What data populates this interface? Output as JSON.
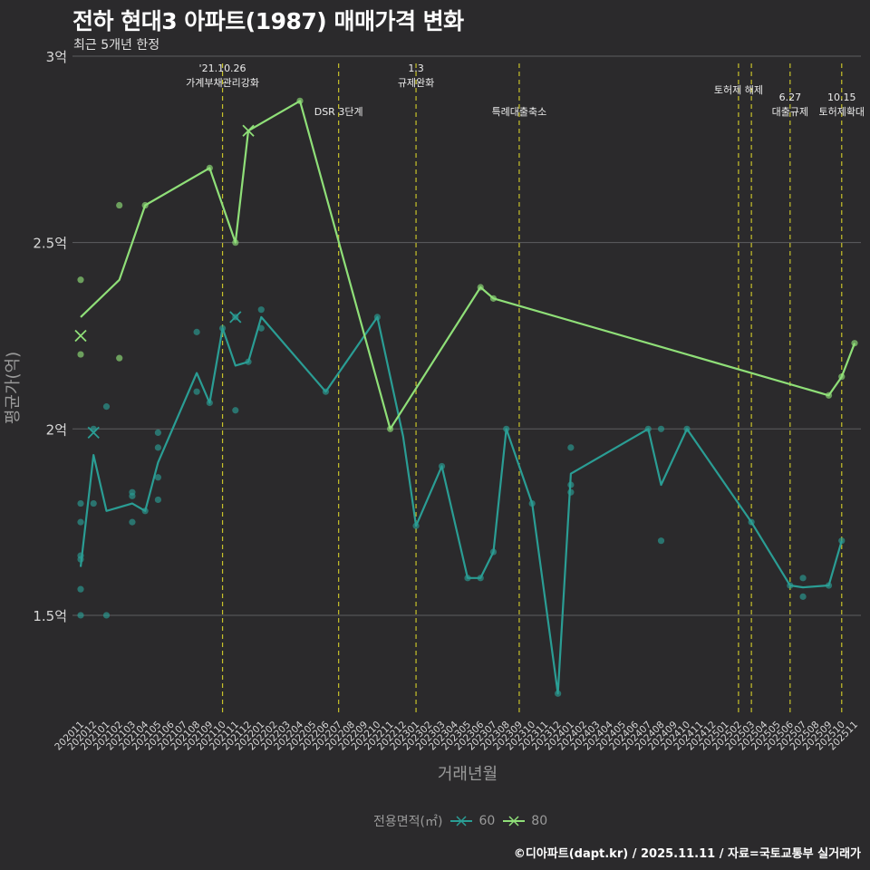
{
  "title": "전하 현대3 아파트(1987) 매매가격 변화",
  "subtitle": "최근 5개년 한정",
  "footer": "©디아파트(dapt.kr) / 2025.11.11 / 자료=국토교통부 실거래가",
  "legend": {
    "title": "전용면적(㎡)",
    "items": [
      {
        "label": "60",
        "color": "#2a9d94"
      },
      {
        "label": "80",
        "color": "#8fdf78"
      }
    ]
  },
  "chart_data": {
    "type": "line",
    "title": "전하 현대3 아파트(1987) 매매가격 변화",
    "xlabel": "거래년월",
    "ylabel": "평균가(억)",
    "ylim": [
      1.23,
      3.0
    ],
    "yticks": [
      1.5,
      2.0,
      2.5,
      3.0
    ],
    "ytick_labels": [
      "1.5억",
      "2억",
      "2.5억",
      "3억"
    ],
    "grid": true,
    "legend_position": "bottom",
    "categories": [
      "202011",
      "202012",
      "202101",
      "202102",
      "202103",
      "202104",
      "202105",
      "202106",
      "202107",
      "202108",
      "202109",
      "202110",
      "202111",
      "202112",
      "202201",
      "202202",
      "202203",
      "202204",
      "202205",
      "202206",
      "202207",
      "202208",
      "202209",
      "202210",
      "202211",
      "202212",
      "202301",
      "202302",
      "202303",
      "202304",
      "202305",
      "202306",
      "202307",
      "202308",
      "202309",
      "202310",
      "202311",
      "202312",
      "202401",
      "202402",
      "202403",
      "202404",
      "202405",
      "202406",
      "202407",
      "202408",
      "202409",
      "202410",
      "202411",
      "202412",
      "202501",
      "202502",
      "202503",
      "202504",
      "202505",
      "202506",
      "202507",
      "202508",
      "202509",
      "202510",
      "202511"
    ],
    "events": [
      {
        "x": "202110",
        "label": "'21.10.26\n가계부채관리강화",
        "row": 1
      },
      {
        "x": "202207",
        "label": "DSR 3단계",
        "row": 3
      },
      {
        "x": "202301",
        "label": "1.3\n규제완화",
        "row": 1
      },
      {
        "x": "202309",
        "label": "특례대출축소",
        "row": 3
      },
      {
        "x": "202502",
        "label": "토허제 해제",
        "row": 2
      },
      {
        "x": "202503",
        "label": "",
        "row": 2
      },
      {
        "x": "202506",
        "label": "6.27\n대출규제",
        "row": 3
      },
      {
        "x": "202510",
        "label": "10.15\n토허제확대",
        "row": 3
      }
    ],
    "series": [
      {
        "name": "60",
        "color": "#2a9d94",
        "line": [
          [
            "202011",
            1.63
          ],
          [
            "202012",
            1.93
          ],
          [
            "202101",
            1.78
          ],
          [
            "202103",
            1.8
          ],
          [
            "202104",
            1.78
          ],
          [
            "202105",
            1.91
          ],
          [
            "202108",
            2.15
          ],
          [
            "202109",
            2.07
          ],
          [
            "202110",
            2.27
          ],
          [
            "202111",
            2.17
          ],
          [
            "202112",
            2.18
          ],
          [
            "202201",
            2.3
          ],
          [
            "202206",
            2.1
          ],
          [
            "202210",
            2.3
          ],
          [
            "202212",
            1.98
          ],
          [
            "202301",
            1.74
          ],
          [
            "202303",
            1.9
          ],
          [
            "202305",
            1.6
          ],
          [
            "202306",
            1.6
          ],
          [
            "202307",
            1.67
          ],
          [
            "202308",
            2.0
          ],
          [
            "202310",
            1.8
          ],
          [
            "202312",
            1.29
          ],
          [
            "202401",
            1.88
          ],
          [
            "202407",
            2.0
          ],
          [
            "202408",
            1.85
          ],
          [
            "202410",
            2.0
          ],
          [
            "202503",
            1.75
          ],
          [
            "202506",
            1.58
          ],
          [
            "202507",
            1.575
          ],
          [
            "202509",
            1.58
          ],
          [
            "202510",
            1.7
          ]
        ],
        "points": [
          [
            "202011",
            1.5
          ],
          [
            "202011",
            1.57
          ],
          [
            "202011",
            1.65
          ],
          [
            "202011",
            1.66
          ],
          [
            "202011",
            1.75
          ],
          [
            "202011",
            1.8
          ],
          [
            "202012",
            1.8
          ],
          [
            "202012",
            2.0
          ],
          [
            "202101",
            1.5
          ],
          [
            "202101",
            2.06
          ],
          [
            "202103",
            1.75
          ],
          [
            "202103",
            1.82
          ],
          [
            "202103",
            1.83
          ],
          [
            "202104",
            1.78
          ],
          [
            "202105",
            1.81
          ],
          [
            "202105",
            1.87
          ],
          [
            "202105",
            1.95
          ],
          [
            "202105",
            1.99
          ],
          [
            "202108",
            2.1
          ],
          [
            "202108",
            2.26
          ],
          [
            "202109",
            2.07
          ],
          [
            "202110",
            2.27
          ],
          [
            "202111",
            2.05
          ],
          [
            "202111",
            2.3
          ],
          [
            "202112",
            2.18
          ],
          [
            "202201",
            2.27
          ],
          [
            "202201",
            2.32
          ],
          [
            "202206",
            2.1
          ],
          [
            "202210",
            2.3
          ],
          [
            "202301",
            1.74
          ],
          [
            "202303",
            1.9
          ],
          [
            "202305",
            1.6
          ],
          [
            "202306",
            1.6
          ],
          [
            "202307",
            1.67
          ],
          [
            "202308",
            2.0
          ],
          [
            "202310",
            1.8
          ],
          [
            "202312",
            1.29
          ],
          [
            "202401",
            1.83
          ],
          [
            "202401",
            1.85
          ],
          [
            "202401",
            1.95
          ],
          [
            "202407",
            2.0
          ],
          [
            "202408",
            1.7
          ],
          [
            "202408",
            2.0
          ],
          [
            "202410",
            2.0
          ],
          [
            "202503",
            1.75
          ],
          [
            "202506",
            1.58
          ],
          [
            "202507",
            1.55
          ],
          [
            "202507",
            1.6
          ],
          [
            "202509",
            1.58
          ],
          [
            "202510",
            1.7
          ]
        ],
        "x_marks": [
          [
            "202012",
            1.99
          ],
          [
            "202111",
            2.3
          ]
        ]
      },
      {
        "name": "80",
        "color": "#8fdf78",
        "line": [
          [
            "202011",
            2.3
          ],
          [
            "202102",
            2.4
          ],
          [
            "202104",
            2.6
          ],
          [
            "202109",
            2.7
          ],
          [
            "202111",
            2.5
          ],
          [
            "202112",
            2.8
          ],
          [
            "202204",
            2.88
          ],
          [
            "202211",
            2.0
          ],
          [
            "202306",
            2.38
          ],
          [
            "202307",
            2.35
          ],
          [
            "202509",
            2.09
          ],
          [
            "202510",
            2.14
          ],
          [
            "202511",
            2.23
          ]
        ],
        "points": [
          [
            "202011",
            2.2
          ],
          [
            "202011",
            2.4
          ],
          [
            "202102",
            2.19
          ],
          [
            "202102",
            2.6
          ],
          [
            "202104",
            2.6
          ],
          [
            "202109",
            2.7
          ],
          [
            "202111",
            2.5
          ],
          [
            "202204",
            2.88
          ],
          [
            "202211",
            2.0
          ],
          [
            "202306",
            2.38
          ],
          [
            "202307",
            2.35
          ],
          [
            "202509",
            2.09
          ],
          [
            "202510",
            2.14
          ],
          [
            "202511",
            2.23
          ]
        ],
        "x_marks": [
          [
            "202011",
            2.25
          ],
          [
            "202112",
            2.8
          ]
        ]
      }
    ]
  }
}
